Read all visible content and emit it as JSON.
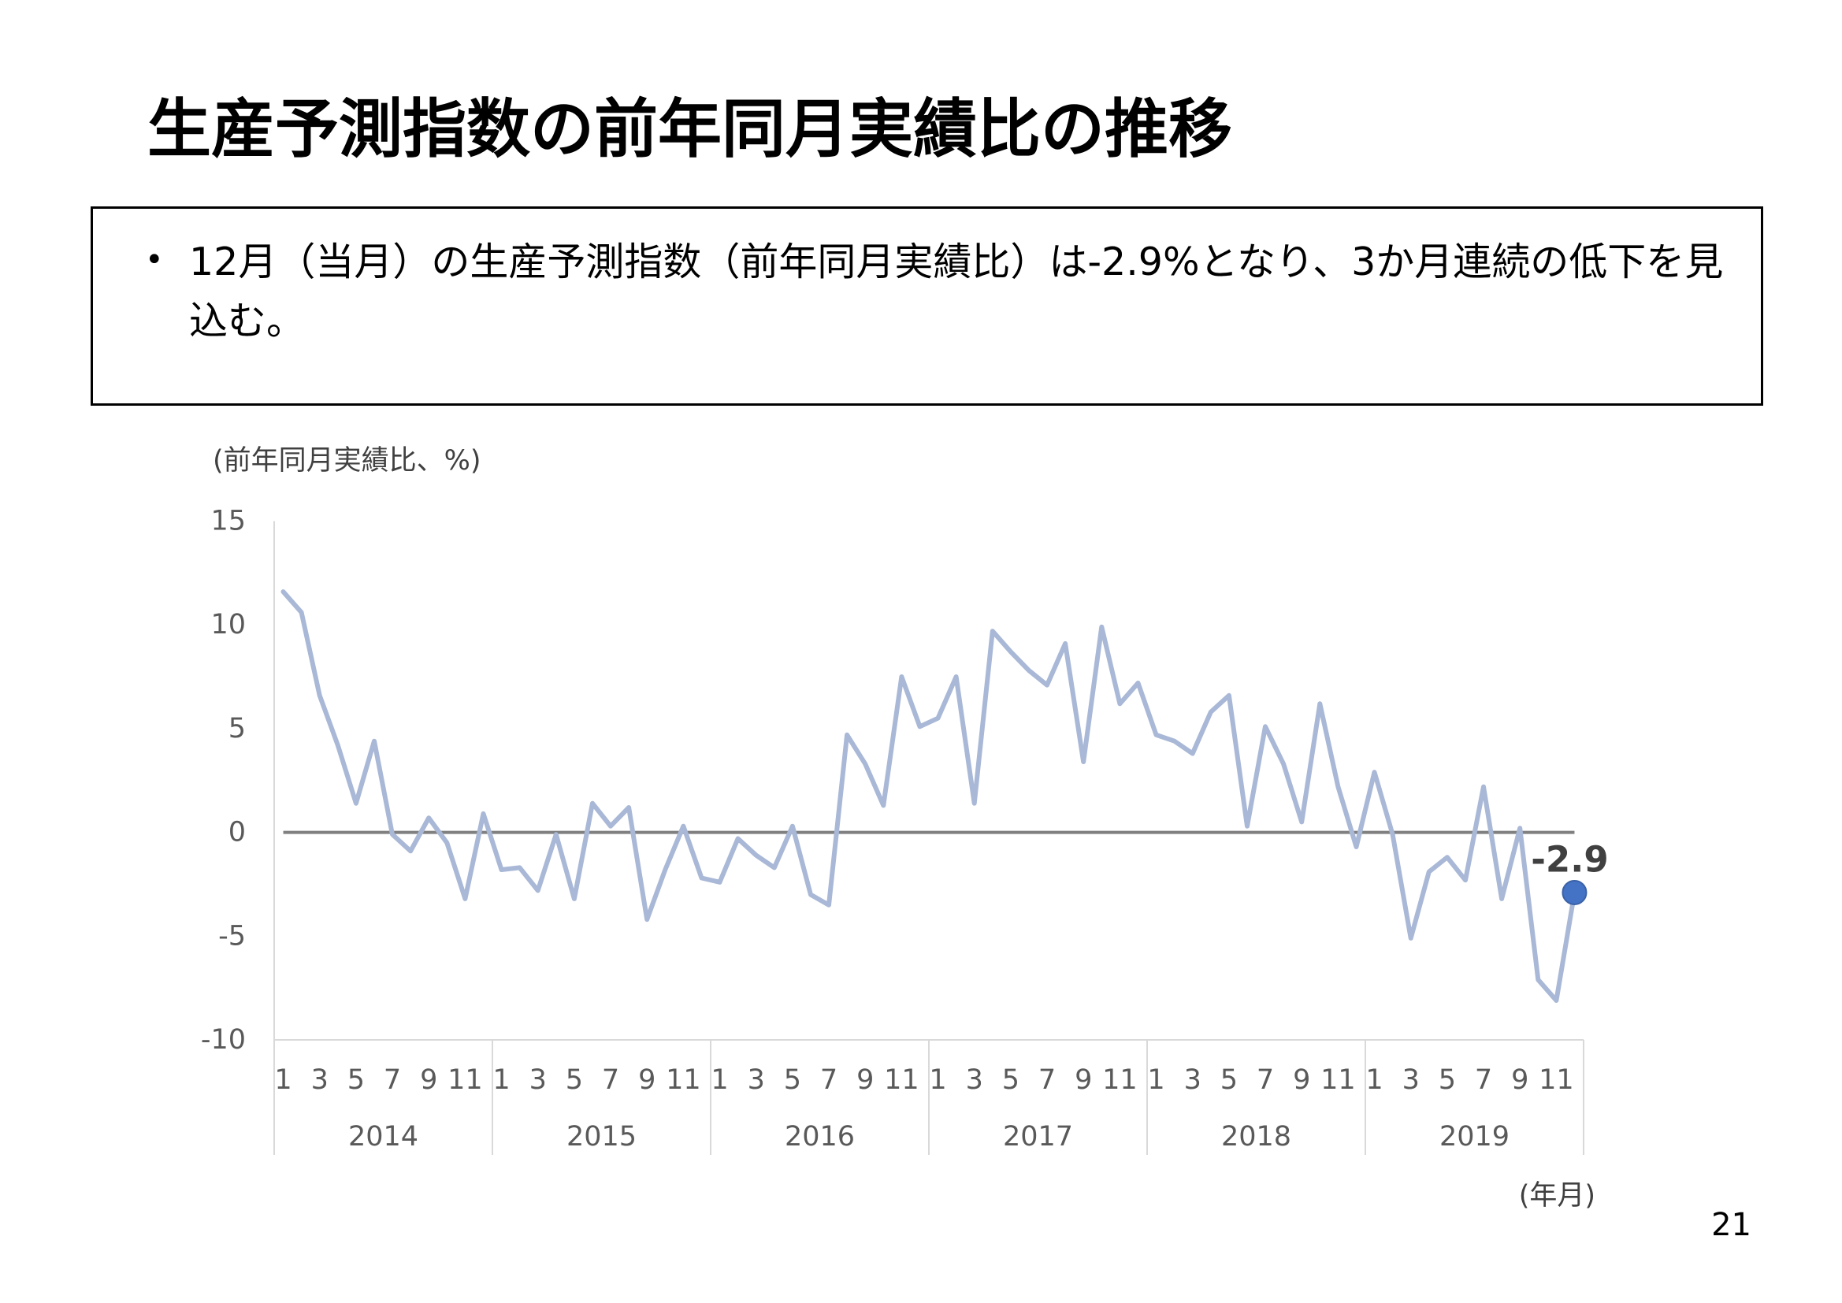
{
  "title": "生産予測指数の前年同月実績比の推移",
  "summary": {
    "bullet": "•",
    "text": "12月（当月）の生産予測指数（前年同月実績比）は-2.9%となり、3か月連続の低下を見込む。"
  },
  "page_number": "21",
  "chart_data": {
    "type": "line",
    "ylabel": "(前年同月実績比、%)",
    "xlabel": "(年月)",
    "ylim": [
      -10,
      15
    ],
    "y_ticks": [
      15,
      10,
      5,
      0,
      -5,
      -10
    ],
    "x": {
      "years": [
        "2014",
        "2015",
        "2016",
        "2017",
        "2018",
        "2019"
      ],
      "months": [
        1,
        2,
        3,
        4,
        5,
        6,
        7,
        8,
        9,
        10,
        11,
        12
      ],
      "month_tick_labels": [
        "1",
        "3",
        "5",
        "7",
        "9",
        "11"
      ]
    },
    "values": [
      11.6,
      10.6,
      6.6,
      4.2,
      1.4,
      4.4,
      -0.1,
      -0.9,
      0.7,
      -0.5,
      -3.2,
      0.9,
      -1.8,
      -1.7,
      -2.8,
      -0.1,
      -3.2,
      1.4,
      0.3,
      1.2,
      -4.2,
      -1.8,
      0.3,
      -2.2,
      -2.4,
      -0.3,
      -1.1,
      -1.7,
      0.3,
      -3.0,
      -3.5,
      4.7,
      3.3,
      1.3,
      7.5,
      5.1,
      5.5,
      7.5,
      1.4,
      9.7,
      8.7,
      7.8,
      7.1,
      9.1,
      3.4,
      9.9,
      6.2,
      7.2,
      4.7,
      4.4,
      3.8,
      5.8,
      6.6,
      0.3,
      5.1,
      3.3,
      0.5,
      6.2,
      2.2,
      -0.7,
      2.9,
      -0.1,
      -5.1,
      -1.9,
      -1.2,
      -2.3,
      2.2,
      -3.2,
      0.2,
      -7.1,
      -8.1,
      -2.9
    ],
    "reference_line": 0,
    "data_labels": [
      {
        "year": "2019",
        "month": 12,
        "text": "-2.9"
      }
    ],
    "grid": false,
    "legend": "none",
    "colors": {
      "line": "#A9B8D6",
      "reference_line": "#808080",
      "marker": "#4472C4",
      "marker_edge": "#3A62A8",
      "axis": "#D9D9D9",
      "data_label": "#404040"
    }
  }
}
